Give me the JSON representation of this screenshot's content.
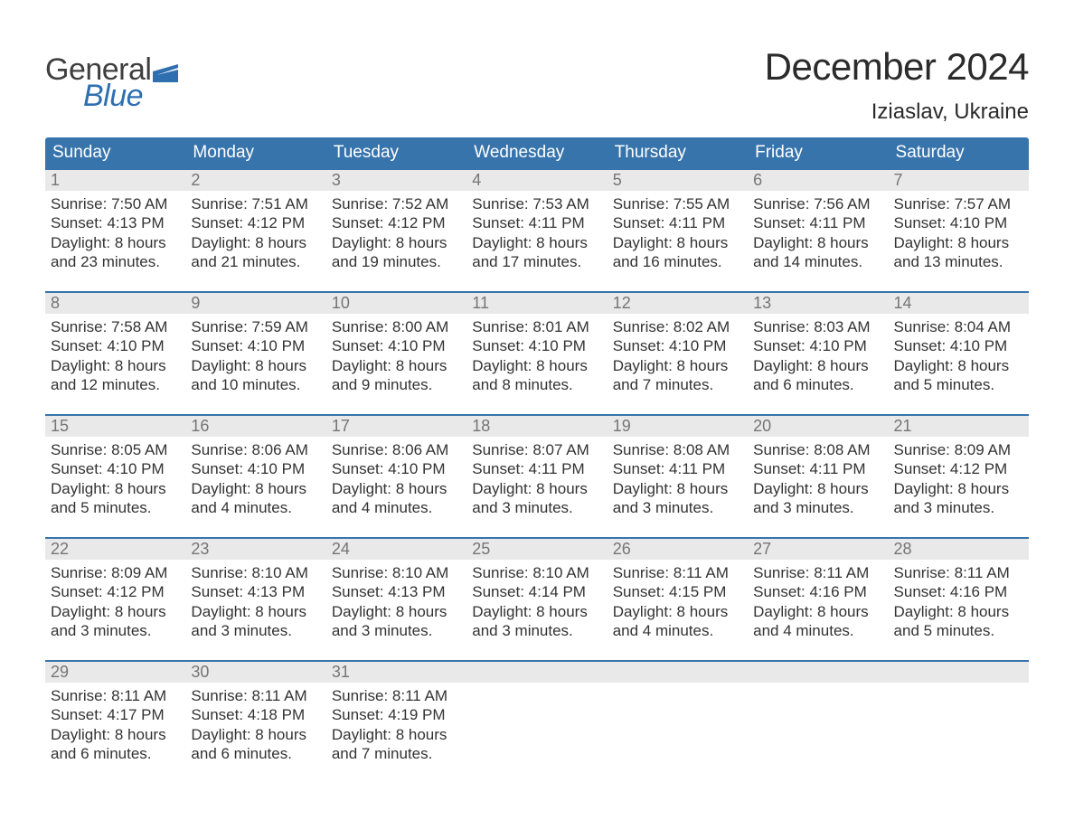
{
  "brand": {
    "word1": "General",
    "word2": "Blue",
    "flag_color": "#2f6fb0"
  },
  "title": "December 2024",
  "location": "Iziaslav, Ukraine",
  "colors": {
    "header_bg": "#3874ac",
    "header_text": "#ffffff",
    "daynum_bg": "#e9e9e9",
    "daynum_text": "#757575",
    "body_text": "#333333",
    "rule": "#3874ac"
  },
  "weekdays": [
    "Sunday",
    "Monday",
    "Tuesday",
    "Wednesday",
    "Thursday",
    "Friday",
    "Saturday"
  ],
  "weeks": [
    [
      {
        "n": "1",
        "sr": "7:50 AM",
        "ss": "4:13 PM",
        "dl1": "Daylight: 8 hours",
        "dl2": "and 23 minutes."
      },
      {
        "n": "2",
        "sr": "7:51 AM",
        "ss": "4:12 PM",
        "dl1": "Daylight: 8 hours",
        "dl2": "and 21 minutes."
      },
      {
        "n": "3",
        "sr": "7:52 AM",
        "ss": "4:12 PM",
        "dl1": "Daylight: 8 hours",
        "dl2": "and 19 minutes."
      },
      {
        "n": "4",
        "sr": "7:53 AM",
        "ss": "4:11 PM",
        "dl1": "Daylight: 8 hours",
        "dl2": "and 17 minutes."
      },
      {
        "n": "5",
        "sr": "7:55 AM",
        "ss": "4:11 PM",
        "dl1": "Daylight: 8 hours",
        "dl2": "and 16 minutes."
      },
      {
        "n": "6",
        "sr": "7:56 AM",
        "ss": "4:11 PM",
        "dl1": "Daylight: 8 hours",
        "dl2": "and 14 minutes."
      },
      {
        "n": "7",
        "sr": "7:57 AM",
        "ss": "4:10 PM",
        "dl1": "Daylight: 8 hours",
        "dl2": "and 13 minutes."
      }
    ],
    [
      {
        "n": "8",
        "sr": "7:58 AM",
        "ss": "4:10 PM",
        "dl1": "Daylight: 8 hours",
        "dl2": "and 12 minutes."
      },
      {
        "n": "9",
        "sr": "7:59 AM",
        "ss": "4:10 PM",
        "dl1": "Daylight: 8 hours",
        "dl2": "and 10 minutes."
      },
      {
        "n": "10",
        "sr": "8:00 AM",
        "ss": "4:10 PM",
        "dl1": "Daylight: 8 hours",
        "dl2": "and 9 minutes."
      },
      {
        "n": "11",
        "sr": "8:01 AM",
        "ss": "4:10 PM",
        "dl1": "Daylight: 8 hours",
        "dl2": "and 8 minutes."
      },
      {
        "n": "12",
        "sr": "8:02 AM",
        "ss": "4:10 PM",
        "dl1": "Daylight: 8 hours",
        "dl2": "and 7 minutes."
      },
      {
        "n": "13",
        "sr": "8:03 AM",
        "ss": "4:10 PM",
        "dl1": "Daylight: 8 hours",
        "dl2": "and 6 minutes."
      },
      {
        "n": "14",
        "sr": "8:04 AM",
        "ss": "4:10 PM",
        "dl1": "Daylight: 8 hours",
        "dl2": "and 5 minutes."
      }
    ],
    [
      {
        "n": "15",
        "sr": "8:05 AM",
        "ss": "4:10 PM",
        "dl1": "Daylight: 8 hours",
        "dl2": "and 5 minutes."
      },
      {
        "n": "16",
        "sr": "8:06 AM",
        "ss": "4:10 PM",
        "dl1": "Daylight: 8 hours",
        "dl2": "and 4 minutes."
      },
      {
        "n": "17",
        "sr": "8:06 AM",
        "ss": "4:10 PM",
        "dl1": "Daylight: 8 hours",
        "dl2": "and 4 minutes."
      },
      {
        "n": "18",
        "sr": "8:07 AM",
        "ss": "4:11 PM",
        "dl1": "Daylight: 8 hours",
        "dl2": "and 3 minutes."
      },
      {
        "n": "19",
        "sr": "8:08 AM",
        "ss": "4:11 PM",
        "dl1": "Daylight: 8 hours",
        "dl2": "and 3 minutes."
      },
      {
        "n": "20",
        "sr": "8:08 AM",
        "ss": "4:11 PM",
        "dl1": "Daylight: 8 hours",
        "dl2": "and 3 minutes."
      },
      {
        "n": "21",
        "sr": "8:09 AM",
        "ss": "4:12 PM",
        "dl1": "Daylight: 8 hours",
        "dl2": "and 3 minutes."
      }
    ],
    [
      {
        "n": "22",
        "sr": "8:09 AM",
        "ss": "4:12 PM",
        "dl1": "Daylight: 8 hours",
        "dl2": "and 3 minutes."
      },
      {
        "n": "23",
        "sr": "8:10 AM",
        "ss": "4:13 PM",
        "dl1": "Daylight: 8 hours",
        "dl2": "and 3 minutes."
      },
      {
        "n": "24",
        "sr": "8:10 AM",
        "ss": "4:13 PM",
        "dl1": "Daylight: 8 hours",
        "dl2": "and 3 minutes."
      },
      {
        "n": "25",
        "sr": "8:10 AM",
        "ss": "4:14 PM",
        "dl1": "Daylight: 8 hours",
        "dl2": "and 3 minutes."
      },
      {
        "n": "26",
        "sr": "8:11 AM",
        "ss": "4:15 PM",
        "dl1": "Daylight: 8 hours",
        "dl2": "and 4 minutes."
      },
      {
        "n": "27",
        "sr": "8:11 AM",
        "ss": "4:16 PM",
        "dl1": "Daylight: 8 hours",
        "dl2": "and 4 minutes."
      },
      {
        "n": "28",
        "sr": "8:11 AM",
        "ss": "4:16 PM",
        "dl1": "Daylight: 8 hours",
        "dl2": "and 5 minutes."
      }
    ],
    [
      {
        "n": "29",
        "sr": "8:11 AM",
        "ss": "4:17 PM",
        "dl1": "Daylight: 8 hours",
        "dl2": "and 6 minutes."
      },
      {
        "n": "30",
        "sr": "8:11 AM",
        "ss": "4:18 PM",
        "dl1": "Daylight: 8 hours",
        "dl2": "and 6 minutes."
      },
      {
        "n": "31",
        "sr": "8:11 AM",
        "ss": "4:19 PM",
        "dl1": "Daylight: 8 hours",
        "dl2": "and 7 minutes."
      },
      null,
      null,
      null,
      null
    ]
  ],
  "labels": {
    "sunrise": "Sunrise: ",
    "sunset": "Sunset: "
  }
}
